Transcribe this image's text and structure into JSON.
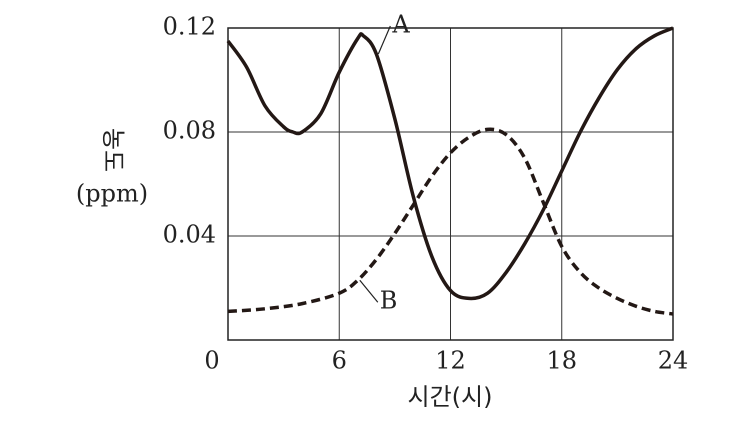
{
  "chart_data": {
    "type": "line",
    "xlabel": "시간(시)",
    "ylabel": "농도",
    "ylabel_unit": "(ppm)",
    "xlim": [
      0,
      24
    ],
    "xticks": [
      0,
      6,
      12,
      18,
      24
    ],
    "ylim": [
      0,
      0.12
    ],
    "yticks": [
      0.04,
      0.08,
      0.12
    ],
    "grid": true,
    "series": [
      {
        "name": "A",
        "color": "#231815",
        "style": "solid",
        "x": [
          0,
          1,
          2,
          3,
          3.5,
          4,
          5,
          6,
          7,
          7.3,
          8,
          9,
          10,
          11,
          12,
          13,
          14,
          15,
          16,
          17,
          18,
          19,
          20,
          21,
          22,
          23,
          24
        ],
        "values": [
          0.115,
          0.105,
          0.09,
          0.082,
          0.08,
          0.08,
          0.087,
          0.103,
          0.116,
          0.117,
          0.11,
          0.085,
          0.055,
          0.032,
          0.019,
          0.016,
          0.018,
          0.026,
          0.037,
          0.05,
          0.065,
          0.08,
          0.093,
          0.104,
          0.112,
          0.117,
          0.12
        ]
      },
      {
        "name": "B",
        "color": "#231815",
        "style": "dashed",
        "x": [
          0,
          2,
          4,
          6,
          7,
          8,
          9,
          10,
          11,
          12,
          13,
          14,
          15,
          16,
          17,
          18,
          19,
          20,
          21,
          22,
          23,
          24
        ],
        "values": [
          0.011,
          0.012,
          0.014,
          0.018,
          0.023,
          0.031,
          0.041,
          0.052,
          0.063,
          0.072,
          0.078,
          0.081,
          0.079,
          0.07,
          0.053,
          0.036,
          0.026,
          0.02,
          0.016,
          0.013,
          0.011,
          0.01
        ]
      }
    ]
  }
}
